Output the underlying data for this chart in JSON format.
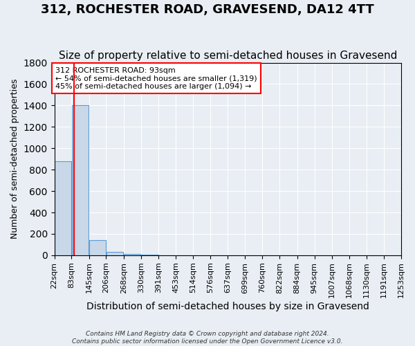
{
  "title": "312, ROCHESTER ROAD, GRAVESEND, DA12 4TT",
  "subtitle": "Size of property relative to semi-detached houses in Gravesend",
  "xlabel": "Distribution of semi-detached houses by size in Gravesend",
  "ylabel": "Number of semi-detached properties",
  "footer_line1": "Contains HM Land Registry data © Crown copyright and database right 2024.",
  "footer_line2": "Contains public sector information licensed under the Open Government Licence v3.0.",
  "bin_edges": [
    22,
    83,
    145,
    206,
    268,
    330,
    391,
    453,
    514,
    576,
    637,
    699,
    760,
    822,
    884,
    945,
    1007,
    1068,
    1130,
    1191,
    1253
  ],
  "bar_heights": [
    880,
    1400,
    140,
    30,
    15,
    3,
    2,
    1,
    1,
    0,
    1,
    0,
    0,
    0,
    0,
    0,
    0,
    0,
    0,
    0
  ],
  "bar_color": "#c8d8e8",
  "bar_edgecolor": "#5b9bd5",
  "property_size": 93,
  "property_line_color": "red",
  "annotation_line1": "312 ROCHESTER ROAD: 93sqm",
  "annotation_line2": "← 54% of semi-detached houses are smaller (1,319)",
  "annotation_line3": "45% of semi-detached houses are larger (1,094) →",
  "annotation_box_edgecolor": "red",
  "annotation_box_facecolor": "white",
  "annotation_text_color": "black",
  "ylim": [
    0,
    1800
  ],
  "background_color": "#e8eef4",
  "grid_color": "white",
  "title_fontsize": 13,
  "subtitle_fontsize": 11,
  "tick_label_fontsize": 8,
  "ylabel_fontsize": 9,
  "xlabel_fontsize": 10,
  "annotation_fontsize": 8
}
